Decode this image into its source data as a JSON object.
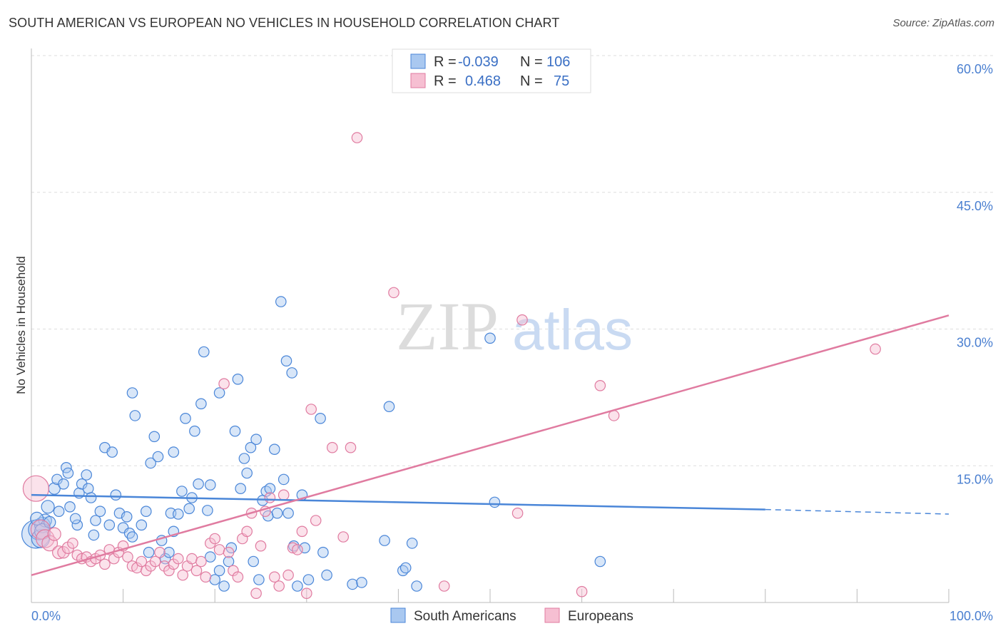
{
  "title": "SOUTH AMERICAN VS EUROPEAN NO VEHICLES IN HOUSEHOLD CORRELATION CHART",
  "source": "Source: ZipAtlas.com",
  "watermark": {
    "zip": "ZIP",
    "atlas": "atlas"
  },
  "colors": {
    "blue": "#4a86d8",
    "blue_fill": "#a9c8f0",
    "pink": "#e07ba0",
    "pink_fill": "#f6bfd2",
    "grid": "#dddddd",
    "tick_text": "#4a7fd0"
  },
  "legend": {
    "rows": [
      {
        "r_label": "R =",
        "r_value": "-0.039",
        "n_label": "N =",
        "n_value": "106",
        "color": "blue"
      },
      {
        "r_label": "R =",
        "r_value": "0.468",
        "n_label": "N =",
        "n_value": "75",
        "color": "pink"
      }
    ]
  },
  "bottom_legend": [
    "South Americans",
    "Europeans"
  ],
  "chart_data": {
    "type": "scatter",
    "ylabel": "No Vehicles in Household",
    "xlim": [
      0,
      100
    ],
    "ylim": [
      0,
      60
    ],
    "y_ticks": [
      "15.0%",
      "30.0%",
      "45.0%",
      "60.0%"
    ],
    "y_tick_values": [
      15,
      30,
      45,
      60
    ],
    "x_ticks": [
      "0.0%",
      "100.0%"
    ],
    "grid": true,
    "legend_position": "top-center",
    "series": [
      {
        "name": "South Americans",
        "color": "blue",
        "trend": {
          "x": [
            0,
            80
          ],
          "y": [
            11.8,
            10.2
          ],
          "dashed_to": [
            100,
            9.7
          ]
        },
        "points": [
          [
            0.5,
            7.5,
            2.2
          ],
          [
            0.8,
            8.0,
            1.6
          ],
          [
            1.0,
            7.0,
            1.4
          ],
          [
            1.2,
            8.5,
            1.2
          ],
          [
            1.5,
            9.0,
            1.0
          ],
          [
            1.8,
            10.5,
            1.0
          ],
          [
            2.5,
            12.5,
            0.9
          ],
          [
            2.8,
            13.5,
            0.8
          ],
          [
            3.0,
            10.0,
            0.8
          ],
          [
            3.5,
            13.0,
            0.8
          ],
          [
            3.8,
            14.8,
            0.8
          ],
          [
            4.0,
            14.2,
            0.8
          ],
          [
            4.2,
            10.5,
            0.8
          ],
          [
            5.0,
            8.5,
            0.8
          ],
          [
            5.2,
            12.0,
            0.8
          ],
          [
            5.5,
            13.0,
            0.8
          ],
          [
            6.0,
            14.0,
            0.8
          ],
          [
            6.2,
            12.5,
            0.8
          ],
          [
            6.5,
            11.5,
            0.8
          ],
          [
            7.0,
            9.0,
            0.8
          ],
          [
            7.5,
            10.0,
            0.8
          ],
          [
            8.0,
            17.0,
            0.8
          ],
          [
            8.5,
            8.5,
            0.8
          ],
          [
            8.8,
            16.5,
            0.8
          ],
          [
            9.2,
            11.8,
            0.8
          ],
          [
            9.6,
            9.8,
            0.8
          ],
          [
            10.0,
            8.2,
            0.8
          ],
          [
            10.4,
            9.4,
            0.8
          ],
          [
            10.7,
            7.6,
            0.8
          ],
          [
            11.0,
            7.2,
            0.8
          ],
          [
            11.0,
            23.0,
            0.8
          ],
          [
            11.3,
            20.5,
            0.8
          ],
          [
            12.0,
            8.5,
            0.8
          ],
          [
            12.5,
            10.0,
            0.8
          ],
          [
            12.8,
            5.5,
            0.8
          ],
          [
            13.0,
            15.3,
            0.8
          ],
          [
            13.4,
            18.2,
            0.8
          ],
          [
            13.8,
            16.0,
            0.8
          ],
          [
            14.2,
            6.8,
            0.8
          ],
          [
            14.6,
            4.8,
            0.8
          ],
          [
            15.0,
            5.5,
            0.8
          ],
          [
            15.2,
            9.8,
            0.8
          ],
          [
            15.5,
            7.8,
            0.8
          ],
          [
            15.5,
            16.5,
            0.8
          ],
          [
            16.0,
            9.7,
            0.8
          ],
          [
            16.4,
            12.2,
            0.8
          ],
          [
            16.8,
            20.2,
            0.8
          ],
          [
            17.2,
            10.3,
            0.8
          ],
          [
            17.5,
            11.5,
            0.8
          ],
          [
            17.8,
            18.8,
            0.8
          ],
          [
            18.2,
            13.0,
            0.8
          ],
          [
            18.5,
            21.8,
            0.8
          ],
          [
            18.8,
            27.5,
            0.8
          ],
          [
            19.2,
            10.1,
            0.8
          ],
          [
            19.5,
            12.9,
            0.8
          ],
          [
            19.5,
            5.0,
            0.8
          ],
          [
            20.0,
            2.5,
            0.8
          ],
          [
            20.5,
            3.5,
            0.8
          ],
          [
            20.5,
            23.0,
            0.8
          ],
          [
            21.0,
            1.8,
            0.8
          ],
          [
            21.5,
            4.5,
            0.8
          ],
          [
            21.8,
            6.0,
            0.8
          ],
          [
            22.2,
            18.8,
            0.8
          ],
          [
            22.5,
            24.5,
            0.8
          ],
          [
            22.8,
            12.5,
            0.8
          ],
          [
            23.2,
            15.8,
            0.8
          ],
          [
            23.5,
            14.2,
            0.8
          ],
          [
            23.9,
            17.0,
            0.8
          ],
          [
            24.2,
            4.5,
            0.8
          ],
          [
            24.5,
            17.9,
            0.8
          ],
          [
            24.8,
            2.5,
            0.8
          ],
          [
            25.2,
            11.2,
            0.8
          ],
          [
            25.6,
            12.2,
            0.8
          ],
          [
            25.8,
            9.5,
            0.8
          ],
          [
            26.0,
            12.5,
            0.8
          ],
          [
            26.5,
            16.8,
            0.8
          ],
          [
            26.8,
            9.8,
            0.8
          ],
          [
            27.2,
            33.0,
            0.8
          ],
          [
            27.5,
            13.5,
            0.8
          ],
          [
            27.8,
            26.5,
            0.8
          ],
          [
            28.0,
            9.8,
            0.8
          ],
          [
            28.4,
            25.2,
            0.8
          ],
          [
            28.6,
            6.2,
            0.8
          ],
          [
            29.0,
            1.8,
            0.8
          ],
          [
            29.5,
            11.8,
            0.8
          ],
          [
            29.8,
            6.0,
            0.8
          ],
          [
            30.2,
            2.5,
            0.8
          ],
          [
            31.5,
            20.2,
            0.8
          ],
          [
            31.8,
            5.5,
            0.8
          ],
          [
            32.2,
            3.0,
            0.8
          ],
          [
            35.0,
            2.0,
            0.8
          ],
          [
            36.0,
            2.2,
            0.8
          ],
          [
            38.5,
            6.8,
            0.8
          ],
          [
            39.0,
            21.5,
            0.8
          ],
          [
            40.5,
            3.5,
            0.8
          ],
          [
            40.8,
            3.8,
            0.8
          ],
          [
            41.5,
            6.5,
            0.8
          ],
          [
            42.0,
            1.8,
            0.8
          ],
          [
            50.0,
            29.0,
            0.8
          ],
          [
            50.5,
            11.0,
            0.8
          ],
          [
            62.0,
            4.5,
            0.8
          ],
          [
            1.2,
            7.8,
            1.2
          ],
          [
            2.0,
            8.8,
            0.9
          ],
          [
            4.8,
            9.2,
            0.8
          ],
          [
            6.8,
            7.4,
            0.8
          ],
          [
            0.6,
            9.2,
            1.0
          ]
        ]
      },
      {
        "name": "Europeans",
        "color": "pink",
        "trend": {
          "x": [
            0,
            100
          ],
          "y": [
            3.0,
            31.5
          ]
        },
        "points": [
          [
            0.5,
            12.5,
            2.0
          ],
          [
            1.0,
            8.0,
            1.5
          ],
          [
            1.5,
            7.0,
            1.4
          ],
          [
            2.0,
            6.5,
            1.2
          ],
          [
            2.5,
            7.5,
            1.0
          ],
          [
            3.0,
            5.5,
            1.0
          ],
          [
            3.5,
            5.5,
            0.9
          ],
          [
            4.0,
            6.0,
            0.9
          ],
          [
            4.5,
            6.5,
            0.8
          ],
          [
            5.0,
            5.2,
            0.8
          ],
          [
            5.5,
            4.8,
            0.8
          ],
          [
            6.0,
            5.0,
            0.8
          ],
          [
            6.5,
            4.5,
            0.8
          ],
          [
            7.0,
            4.8,
            0.8
          ],
          [
            7.5,
            5.2,
            0.8
          ],
          [
            8.0,
            4.2,
            0.8
          ],
          [
            8.5,
            5.8,
            0.8
          ],
          [
            9.0,
            4.8,
            0.8
          ],
          [
            9.5,
            5.5,
            0.8
          ],
          [
            10.0,
            6.2,
            0.8
          ],
          [
            10.5,
            5.0,
            0.8
          ],
          [
            11.0,
            4.0,
            0.8
          ],
          [
            11.5,
            3.8,
            0.8
          ],
          [
            12.0,
            4.5,
            0.8
          ],
          [
            12.5,
            3.5,
            0.8
          ],
          [
            13.0,
            4.0,
            0.8
          ],
          [
            13.5,
            4.5,
            0.8
          ],
          [
            14.0,
            5.5,
            0.8
          ],
          [
            14.5,
            4.0,
            0.8
          ],
          [
            15.0,
            3.5,
            0.8
          ],
          [
            15.5,
            4.2,
            0.8
          ],
          [
            16.0,
            4.8,
            0.8
          ],
          [
            16.5,
            3.0,
            0.8
          ],
          [
            17.0,
            4.0,
            0.8
          ],
          [
            17.5,
            4.8,
            0.8
          ],
          [
            18.0,
            3.5,
            0.8
          ],
          [
            18.5,
            4.5,
            0.8
          ],
          [
            19.0,
            2.8,
            0.8
          ],
          [
            19.5,
            6.5,
            0.8
          ],
          [
            20.0,
            7.0,
            0.8
          ],
          [
            20.5,
            5.8,
            0.8
          ],
          [
            21.0,
            24.0,
            0.8
          ],
          [
            21.5,
            5.5,
            0.8
          ],
          [
            22.0,
            3.5,
            0.8
          ],
          [
            22.5,
            2.8,
            0.8
          ],
          [
            23.0,
            7.0,
            0.8
          ],
          [
            23.5,
            7.8,
            0.8
          ],
          [
            24.0,
            9.8,
            0.8
          ],
          [
            24.5,
            1.0,
            0.8
          ],
          [
            25.0,
            6.2,
            0.8
          ],
          [
            25.5,
            10.0,
            0.8
          ],
          [
            26.0,
            11.5,
            0.8
          ],
          [
            26.5,
            2.8,
            0.8
          ],
          [
            27.0,
            1.8,
            0.8
          ],
          [
            27.5,
            11.8,
            0.8
          ],
          [
            28.0,
            3.0,
            0.8
          ],
          [
            28.5,
            6.0,
            0.8
          ],
          [
            29.0,
            5.8,
            0.8
          ],
          [
            29.5,
            7.8,
            0.8
          ],
          [
            30.0,
            1.0,
            0.8
          ],
          [
            30.5,
            21.2,
            0.8
          ],
          [
            31.0,
            9.0,
            0.8
          ],
          [
            32.8,
            17.0,
            0.8
          ],
          [
            34.8,
            17.0,
            0.8
          ],
          [
            34.0,
            7.2,
            0.8
          ],
          [
            35.5,
            51.0,
            0.8
          ],
          [
            39.5,
            34.0,
            0.8
          ],
          [
            40.0,
            60.0,
            0.8
          ],
          [
            45.0,
            1.8,
            0.8
          ],
          [
            53.0,
            9.8,
            0.8
          ],
          [
            53.5,
            31.0,
            0.8
          ],
          [
            60.0,
            1.2,
            0.8
          ],
          [
            62.0,
            23.8,
            0.8
          ],
          [
            63.5,
            20.5,
            0.8
          ],
          [
            92.0,
            27.8,
            0.8
          ]
        ]
      }
    ]
  }
}
